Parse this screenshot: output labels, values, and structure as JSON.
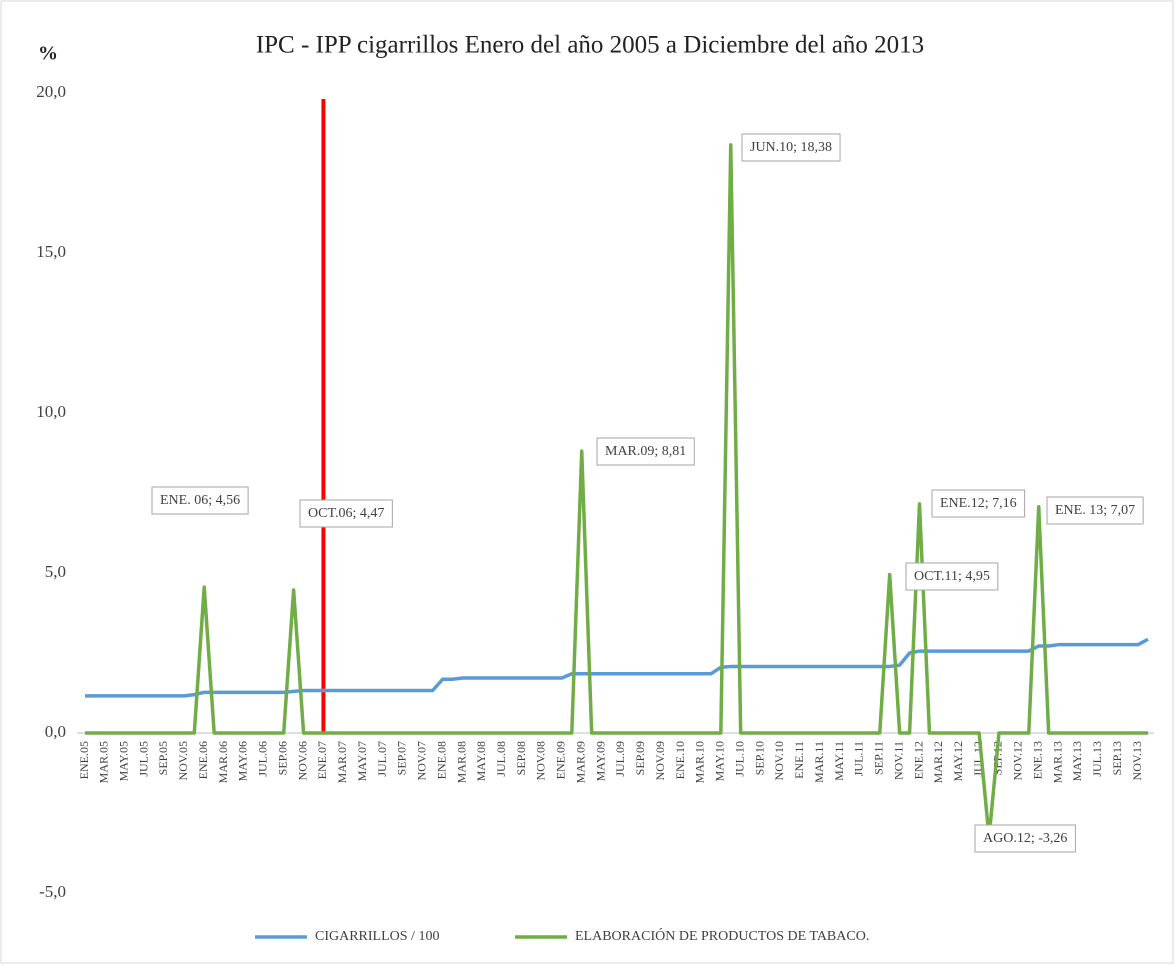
{
  "chart_data": {
    "type": "line",
    "title": "IPC - IPP cigarrillos  Enero del año 2005 a Diciembre del año 2013",
    "y_label": "%",
    "categories": [
      "ENE.05",
      null,
      "MAR.05",
      null,
      "MAY.05",
      null,
      "JUL.05",
      null,
      "SEP.05",
      null,
      "NOV.05",
      null,
      "ENE.06",
      null,
      "MAR.06",
      null,
      "MAY.06",
      null,
      "JUL.06",
      null,
      "SEP.06",
      null,
      "NOV.06",
      null,
      "ENE.07",
      null,
      "MAR.07",
      null,
      "MAY.07",
      null,
      "JUL.07",
      null,
      "SEP.07",
      null,
      "NOV.07",
      null,
      "ENE.08",
      null,
      "MAR.08",
      null,
      "MAY.08",
      null,
      "JUL.08",
      null,
      "SEP.08",
      null,
      "NOV.08",
      null,
      "ENE.09",
      null,
      "MAR.09",
      null,
      "MAY.09",
      null,
      "JUL.09",
      null,
      "SEP.09",
      null,
      "NOV.09",
      null,
      "ENE.10",
      null,
      "MAR.10",
      null,
      "MAY.10",
      null,
      "JUL.10",
      null,
      "SEP.10",
      null,
      "NOV.10",
      null,
      "ENE.11",
      null,
      "MAR.11",
      null,
      "MAY.11",
      null,
      "JUL.11",
      null,
      "SEP.11",
      null,
      "NOV.11",
      null,
      "ENE.12",
      null,
      "MAR.12",
      null,
      "MAY.12",
      null,
      "JUL.12",
      null,
      "SEP.12",
      null,
      "NOV.12",
      null,
      "ENE.13",
      null,
      "MAR.13",
      null,
      "MAY.13",
      null,
      "JUL.13",
      null,
      "SEP.13",
      null,
      "NOV.13",
      null
    ],
    "series": [
      {
        "name": "CIGARRILLOS / 100",
        "color": "#5b9bd5",
        "values": [
          1.16,
          1.16,
          1.16,
          1.16,
          1.16,
          1.16,
          1.16,
          1.16,
          1.16,
          1.16,
          1.16,
          1.2,
          1.27,
          1.27,
          1.27,
          1.27,
          1.27,
          1.27,
          1.27,
          1.27,
          1.27,
          1.3,
          1.33,
          1.33,
          1.33,
          1.33,
          1.33,
          1.33,
          1.33,
          1.33,
          1.33,
          1.33,
          1.33,
          1.33,
          1.33,
          1.33,
          1.68,
          1.68,
          1.72,
          1.72,
          1.72,
          1.72,
          1.72,
          1.72,
          1.72,
          1.72,
          1.72,
          1.72,
          1.72,
          1.85,
          1.85,
          1.85,
          1.85,
          1.85,
          1.85,
          1.85,
          1.85,
          1.85,
          1.85,
          1.85,
          1.85,
          1.85,
          1.85,
          1.85,
          2.05,
          2.08,
          2.08,
          2.08,
          2.08,
          2.08,
          2.08,
          2.08,
          2.08,
          2.08,
          2.08,
          2.08,
          2.08,
          2.08,
          2.08,
          2.08,
          2.08,
          2.08,
          2.12,
          2.5,
          2.56,
          2.56,
          2.56,
          2.56,
          2.56,
          2.56,
          2.56,
          2.56,
          2.56,
          2.56,
          2.56,
          2.56,
          2.72,
          2.72,
          2.76,
          2.76,
          2.76,
          2.76,
          2.76,
          2.76,
          2.76,
          2.76,
          2.76,
          2.93
        ]
      },
      {
        "name": "ELABORACIÓN DE PRODUCTOS DE TABACO.",
        "color": "#70ad47",
        "values": [
          0,
          0,
          0,
          0,
          0,
          0,
          0,
          0,
          0,
          0,
          0,
          0,
          4.56,
          0,
          0,
          0,
          0,
          0,
          0,
          0,
          0,
          4.47,
          0,
          0,
          0,
          0,
          0,
          0,
          0,
          0,
          0,
          0,
          0,
          0,
          0,
          0,
          0,
          0,
          0,
          0,
          0,
          0,
          0,
          0,
          0,
          0,
          0,
          0,
          0,
          0,
          8.81,
          0,
          0,
          0,
          0,
          0,
          0,
          0,
          0,
          0,
          0,
          0,
          0,
          0,
          0,
          18.38,
          0,
          0,
          0,
          0,
          0,
          0,
          0,
          0,
          0,
          0,
          0,
          0,
          0,
          0,
          0,
          4.95,
          0,
          0,
          7.16,
          0,
          0,
          0,
          0,
          0,
          0,
          -3.26,
          0,
          0,
          0,
          0,
          7.07,
          0,
          0,
          0,
          0,
          0,
          0,
          0,
          0,
          0,
          0,
          0
        ],
        "value_labels": [
          null,
          null,
          null,
          null,
          null,
          null,
          null,
          null,
          null,
          null,
          null,
          null,
          "ENE. 06; 4,56",
          null,
          null,
          null,
          null,
          null,
          null,
          null,
          null,
          "OCT.06; 4,47",
          null,
          null,
          null,
          null,
          null,
          null,
          null,
          null,
          null,
          null,
          null,
          null,
          null,
          null,
          null,
          null,
          null,
          null,
          null,
          null,
          null,
          null,
          null,
          null,
          null,
          null,
          null,
          null,
          "MAR.09; 8,81",
          null,
          null,
          null,
          null,
          null,
          null,
          null,
          null,
          null,
          null,
          null,
          null,
          null,
          null,
          "JUN.10; 18,38",
          null,
          null,
          null,
          null,
          null,
          null,
          null,
          null,
          null,
          null,
          null,
          null,
          null,
          null,
          null,
          "OCT.11; 4,95",
          null,
          null,
          "ENE.12; 7,16",
          null,
          null,
          null,
          null,
          null,
          null,
          "AGO.12; -3,26",
          null,
          null,
          null,
          null,
          "ENE. 13; 7,07",
          null,
          null,
          null,
          null,
          null,
          null,
          null,
          null,
          null,
          null,
          null
        ]
      }
    ],
    "marker": {
      "category": "ENE.07",
      "color": "#ff0000"
    },
    "ylim": [
      -5,
      20
    ],
    "yticks": [
      {
        "value": -5,
        "label": "-5,0"
      },
      {
        "value": 0,
        "label": "0,0"
      },
      {
        "value": 5,
        "label": "5,0"
      },
      {
        "value": 10,
        "label": "10,0"
      },
      {
        "value": 15,
        "label": "15,0"
      },
      {
        "value": 20,
        "label": "20,0"
      }
    ],
    "grid": false,
    "legend": "bottom"
  }
}
